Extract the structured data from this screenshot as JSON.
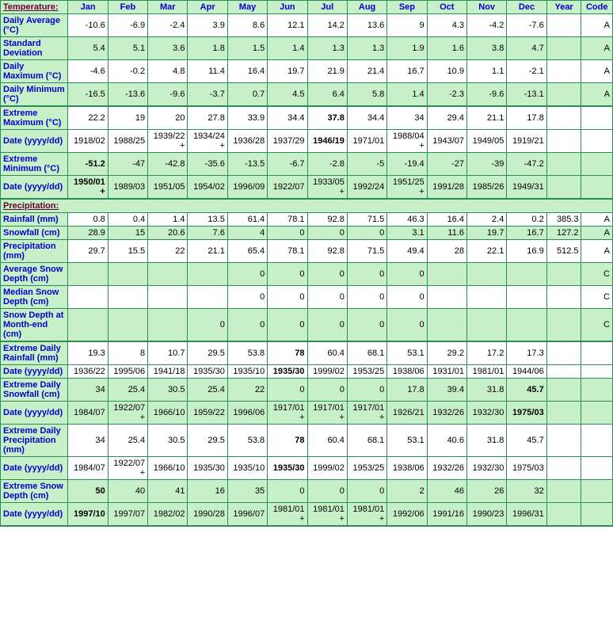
{
  "headers": [
    "Temperature:",
    "Jan",
    "Feb",
    "Mar",
    "Apr",
    "May",
    "Jun",
    "Jul",
    "Aug",
    "Sep",
    "Oct",
    "Nov",
    "Dec",
    "Year",
    "Code"
  ],
  "tempRows": [
    {
      "label": "Daily Average (°C)",
      "shade": "white",
      "thick": false,
      "cells": [
        "-10.6",
        "-6.9",
        "-2.4",
        "3.9",
        "8.6",
        "12.1",
        "14.2",
        "13.6",
        "9",
        "4.3",
        "-4.2",
        "-7.6",
        "",
        "A"
      ],
      "bold": []
    },
    {
      "label": "Standard Deviation",
      "shade": "green",
      "thick": false,
      "cells": [
        "5.4",
        "5.1",
        "3.6",
        "1.8",
        "1.5",
        "1.4",
        "1.3",
        "1.3",
        "1.9",
        "1.6",
        "3.8",
        "4.7",
        "",
        "A"
      ],
      "bold": []
    },
    {
      "label": "Daily Maximum (°C)",
      "shade": "white",
      "thick": false,
      "cells": [
        "-4.6",
        "-0.2",
        "4.8",
        "11.4",
        "16.4",
        "19.7",
        "21.9",
        "21.4",
        "16.7",
        "10.9",
        "1.1",
        "-2.1",
        "",
        "A"
      ],
      "bold": []
    },
    {
      "label": "Daily Minimum (°C)",
      "shade": "green",
      "thick": true,
      "cells": [
        "-16.5",
        "-13.6",
        "-9.6",
        "-3.7",
        "0.7",
        "4.5",
        "6.4",
        "5.8",
        "1.4",
        "-2.3",
        "-9.6",
        "-13.1",
        "",
        "A"
      ],
      "bold": []
    },
    {
      "label": "Extreme Maximum (°C)",
      "shade": "white",
      "thick": false,
      "cells": [
        "22.2",
        "19",
        "20",
        "27.8",
        "33.9",
        "34.4",
        "37.8",
        "34.4",
        "34",
        "29.4",
        "21.1",
        "17.8",
        "",
        ""
      ],
      "bold": [
        6
      ]
    },
    {
      "label": "Date (yyyy/dd)",
      "shade": "white",
      "thick": false,
      "cells": [
        "1918/02",
        "1988/25",
        "1939/22+",
        "1934/24+",
        "1936/28",
        "1937/29",
        "1946/19",
        "1971/01",
        "1988/04+",
        "1943/07",
        "1949/05",
        "1919/21",
        "",
        ""
      ],
      "bold": [
        6
      ]
    },
    {
      "label": "Extreme Minimum (°C)",
      "shade": "green",
      "thick": false,
      "cells": [
        "-51.2",
        "-47",
        "-42.8",
        "-35.6",
        "-13.5",
        "-6.7",
        "-2.8",
        "-5",
        "-19.4",
        "-27",
        "-39",
        "-47.2",
        "",
        ""
      ],
      "bold": [
        0
      ]
    },
    {
      "label": "Date (yyyy/dd)",
      "shade": "green",
      "thick": true,
      "cells": [
        "1950/01+",
        "1989/03",
        "1951/05",
        "1954/02",
        "1996/09",
        "1922/07",
        "1933/05+",
        "1992/24",
        "1951/25+",
        "1991/28",
        "1985/26",
        "1949/31",
        "",
        ""
      ],
      "bold": [
        0
      ]
    }
  ],
  "precipHeader": "Precipitation:",
  "precipRows": [
    {
      "label": "Rainfall (mm)",
      "shade": "white",
      "thick": false,
      "cells": [
        "0.8",
        "0.4",
        "1.4",
        "13.5",
        "61.4",
        "78.1",
        "92.8",
        "71.5",
        "46.3",
        "16.4",
        "2.4",
        "0.2",
        "385.3",
        "A"
      ],
      "bold": []
    },
    {
      "label": "Snowfall (cm)",
      "shade": "green",
      "thick": false,
      "cells": [
        "28.9",
        "15",
        "20.6",
        "7.6",
        "4",
        "0",
        "0",
        "0",
        "3.1",
        "11.6",
        "19.7",
        "16.7",
        "127.2",
        "A"
      ],
      "bold": []
    },
    {
      "label": "Precipitation (mm)",
      "shade": "white",
      "thick": false,
      "cells": [
        "29.7",
        "15.5",
        "22",
        "21.1",
        "65.4",
        "78.1",
        "92.8",
        "71.5",
        "49.4",
        "28",
        "22.1",
        "16.9",
        "512.5",
        "A"
      ],
      "bold": []
    },
    {
      "label": "Average Snow Depth (cm)",
      "shade": "green",
      "thick": false,
      "cells": [
        "",
        "",
        "",
        "",
        "0",
        "0",
        "0",
        "0",
        "0",
        "",
        "",
        "",
        "",
        "C"
      ],
      "bold": []
    },
    {
      "label": "Median Snow Depth (cm)",
      "shade": "white",
      "thick": false,
      "cells": [
        "",
        "",
        "",
        "",
        "0",
        "0",
        "0",
        "0",
        "0",
        "",
        "",
        "",
        "",
        "C"
      ],
      "bold": []
    },
    {
      "label": "Snow Depth at Month-end (cm)",
      "shade": "green",
      "thick": true,
      "cells": [
        "",
        "",
        "",
        "0",
        "0",
        "0",
        "0",
        "0",
        "0",
        "",
        "",
        "",
        "",
        "C"
      ],
      "bold": []
    },
    {
      "label": "Extreme Daily Rainfall (mm)",
      "shade": "white",
      "thick": false,
      "cells": [
        "19.3",
        "8",
        "10.7",
        "29.5",
        "53.8",
        "78",
        "60.4",
        "68.1",
        "53.1",
        "29.2",
        "17.2",
        "17.3",
        "",
        ""
      ],
      "bold": [
        5
      ]
    },
    {
      "label": "Date (yyyy/dd)",
      "shade": "white",
      "thick": false,
      "cells": [
        "1936/22",
        "1995/06",
        "1941/18",
        "1935/30",
        "1935/10",
        "1935/30",
        "1999/02",
        "1953/25",
        "1938/06",
        "1931/01",
        "1981/01",
        "1944/06",
        "",
        ""
      ],
      "bold": [
        5
      ]
    },
    {
      "label": "Extreme Daily Snowfall (cm)",
      "shade": "green",
      "thick": false,
      "cells": [
        "34",
        "25.4",
        "30.5",
        "25.4",
        "22",
        "0",
        "0",
        "0",
        "17.8",
        "39.4",
        "31.8",
        "45.7",
        "",
        ""
      ],
      "bold": [
        11
      ]
    },
    {
      "label": "Date (yyyy/dd)",
      "shade": "green",
      "thick": false,
      "cells": [
        "1984/07",
        "1922/07+",
        "1966/10",
        "1959/22",
        "1996/06",
        "1917/01+",
        "1917/01+",
        "1917/01+",
        "1926/21",
        "1932/26",
        "1932/30",
        "1975/03",
        "",
        ""
      ],
      "bold": [
        11
      ]
    },
    {
      "label": "Extreme Daily Precipitation (mm)",
      "shade": "white",
      "thick": false,
      "cells": [
        "34",
        "25.4",
        "30.5",
        "29.5",
        "53.8",
        "78",
        "60.4",
        "68.1",
        "53.1",
        "40.6",
        "31.8",
        "45.7",
        "",
        ""
      ],
      "bold": [
        5
      ]
    },
    {
      "label": "Date (yyyy/dd)",
      "shade": "white",
      "thick": false,
      "cells": [
        "1984/07",
        "1922/07+",
        "1966/10",
        "1935/30",
        "1935/10",
        "1935/30",
        "1999/02",
        "1953/25",
        "1938/06",
        "1932/26",
        "1932/30",
        "1975/03",
        "",
        ""
      ],
      "bold": [
        5
      ]
    },
    {
      "label": "Extreme Snow Depth (cm)",
      "shade": "green",
      "thick": false,
      "cells": [
        "50",
        "40",
        "41",
        "16",
        "35",
        "0",
        "0",
        "0",
        "2",
        "46",
        "26",
        "32",
        "",
        ""
      ],
      "bold": [
        0
      ]
    },
    {
      "label": "Date (yyyy/dd)",
      "shade": "green",
      "thick": true,
      "cells": [
        "1997/10",
        "1997/07",
        "1982/02",
        "1990/28",
        "1996/07",
        "1981/01+",
        "1981/01+",
        "1981/01+",
        "1992/06",
        "1991/16",
        "1990/23",
        "1996/31",
        "",
        ""
      ],
      "bold": [
        0
      ]
    }
  ]
}
